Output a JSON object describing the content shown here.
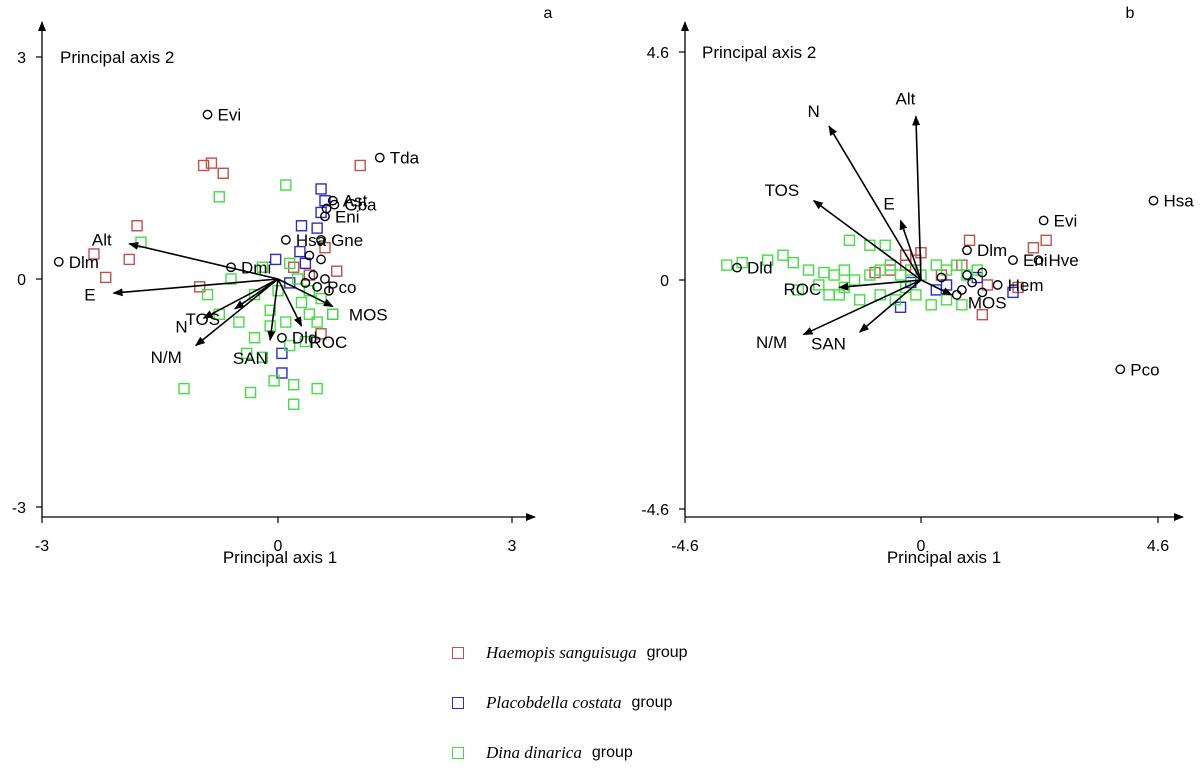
{
  "colors": {
    "haemopis": "#c0504d",
    "placobdella": "#2b2bcc",
    "dina": "#44dd44",
    "species": "#000000",
    "arrow": "#000000"
  },
  "legend": [
    {
      "name": "Haemopis sanguisuga",
      "suffix": "group",
      "color_key": "haemopis"
    },
    {
      "name": "Placobdella costata",
      "suffix": "group",
      "color_key": "placobdella"
    },
    {
      "name": "Dina dinarica",
      "suffix": "group",
      "color_key": "dina"
    }
  ],
  "chart_data": [
    {
      "type": "scatter",
      "panel_label": "a",
      "xlabel": "Principal axis  1",
      "ylabel": "Principal axis  2",
      "xlim": [
        -3,
        3
      ],
      "ylim": [
        -3,
        3
      ],
      "x_ticks": [
        "-3",
        "0",
        "3"
      ],
      "y_ticks": [
        "3",
        "0",
        "-3"
      ],
      "vectors": [
        {
          "label": "Alt",
          "x": -1.9,
          "y": 0.45
        },
        {
          "label": "E",
          "x": -2.1,
          "y": -0.18
        },
        {
          "label": "N",
          "x": -0.95,
          "y": -0.5
        },
        {
          "label": "N/M",
          "x": -1.05,
          "y": -0.85
        },
        {
          "label": "TOS",
          "x": -0.55,
          "y": -0.38
        },
        {
          "label": "SAN",
          "x": -0.1,
          "y": -0.78
        },
        {
          "label": "ROC",
          "x": 0.3,
          "y": -0.6
        },
        {
          "label": "MOS",
          "x": 0.7,
          "y": -0.35
        }
      ],
      "species": [
        {
          "label": "Evi",
          "x": -0.9,
          "y": 2.1
        },
        {
          "label": "Tda",
          "x": 1.3,
          "y": 1.55
        },
        {
          "label": "Ast",
          "x": 0.7,
          "y": 1.0
        },
        {
          "label": "Gba",
          "x": 0.72,
          "y": 0.95
        },
        {
          "label": "Eni",
          "x": 0.6,
          "y": 0.8
        },
        {
          "label": "Hsa",
          "x": 0.1,
          "y": 0.5
        },
        {
          "label": "Gne",
          "x": 0.55,
          "y": 0.5
        },
        {
          "label": "Dmi",
          "x": -0.6,
          "y": 0.15
        },
        {
          "label": "Dlm",
          "x": -2.8,
          "y": 0.22
        },
        {
          "label": "Pco",
          "x": 0.5,
          "y": -0.1
        },
        {
          "label": "Dld",
          "x": 0.05,
          "y": -0.75
        },
        {
          "label": "",
          "x": 0.4,
          "y": 0.3
        },
        {
          "label": "",
          "x": 0.55,
          "y": 0.25
        },
        {
          "label": "",
          "x": 0.45,
          "y": 0.05
        },
        {
          "label": "",
          "x": 0.6,
          "y": 0.0
        },
        {
          "label": "",
          "x": 0.35,
          "y": -0.05
        },
        {
          "label": "",
          "x": 0.65,
          "y": -0.15
        },
        {
          "label": "",
          "x": 0.62,
          "y": 0.9
        }
      ],
      "groups": [
        {
          "name": "Haemopis sanguisuga",
          "color_key": "haemopis",
          "points": [
            [
              -0.95,
              1.45
            ],
            [
              -0.85,
              1.48
            ],
            [
              -0.7,
              1.35
            ],
            [
              1.05,
              1.45
            ],
            [
              -1.8,
              0.68
            ],
            [
              -2.35,
              0.32
            ],
            [
              -1.9,
              0.25
            ],
            [
              -2.2,
              0.02
            ],
            [
              -1.0,
              -0.1
            ],
            [
              0.6,
              0.4
            ],
            [
              0.75,
              0.1
            ],
            [
              0.55,
              -0.7
            ],
            [
              0.4,
              0.05
            ],
            [
              0.2,
              0.15
            ]
          ]
        },
        {
          "name": "Placobdella costata",
          "color_key": "placobdella",
          "points": [
            [
              0.55,
              1.15
            ],
            [
              0.6,
              1.0
            ],
            [
              0.3,
              0.68
            ],
            [
              0.5,
              0.65
            ],
            [
              0.55,
              0.85
            ],
            [
              0.28,
              0.35
            ],
            [
              0.35,
              0.2
            ],
            [
              -0.03,
              0.25
            ],
            [
              0.15,
              -0.05
            ],
            [
              0.05,
              -0.95
            ],
            [
              0.05,
              -1.2
            ],
            [
              0.7,
              -0.45
            ]
          ]
        },
        {
          "name": "Dina dinarica",
          "color_key": "dina",
          "points": [
            [
              0.1,
              1.2
            ],
            [
              -0.75,
              1.05
            ],
            [
              -1.75,
              0.47
            ],
            [
              -0.9,
              -0.2
            ],
            [
              -0.75,
              -0.45
            ],
            [
              -0.5,
              -0.55
            ],
            [
              -0.3,
              -0.2
            ],
            [
              -0.2,
              0.15
            ],
            [
              0.15,
              0.2
            ],
            [
              0.25,
              0.0
            ],
            [
              0.3,
              -0.3
            ],
            [
              0.4,
              -0.45
            ],
            [
              0.5,
              -0.55
            ],
            [
              0.55,
              -0.25
            ],
            [
              0.7,
              -0.45
            ],
            [
              0.1,
              -0.55
            ],
            [
              -0.1,
              -0.6
            ],
            [
              -0.3,
              -0.75
            ],
            [
              -0.4,
              -0.95
            ],
            [
              -0.2,
              -1.0
            ],
            [
              0.15,
              -0.85
            ],
            [
              0.35,
              -0.8
            ],
            [
              -1.2,
              -1.4
            ],
            [
              -0.35,
              -1.45
            ],
            [
              -0.05,
              -1.3
            ],
            [
              0.2,
              -1.35
            ],
            [
              0.5,
              -1.4
            ],
            [
              0.2,
              -1.6
            ],
            [
              0.0,
              -0.15
            ],
            [
              -0.6,
              0.0
            ],
            [
              0.4,
              -0.15
            ],
            [
              -0.1,
              -0.4
            ]
          ]
        }
      ]
    },
    {
      "type": "scatter",
      "panel_label": "b",
      "xlabel": "Principal axis  1",
      "ylabel": "Principal axis  2",
      "xlim": [
        -4.6,
        4.6
      ],
      "ylim": [
        -4.6,
        4.6
      ],
      "x_ticks": [
        "-4.6",
        "0",
        "4.6"
      ],
      "y_ticks": [
        "4.6",
        "0",
        "-4.6"
      ],
      "vectors": [
        {
          "label": "N",
          "x": -1.8,
          "y": 3.1
        },
        {
          "label": "Alt",
          "x": -0.1,
          "y": 3.3
        },
        {
          "label": "TOS",
          "x": -2.1,
          "y": 1.6
        },
        {
          "label": "E",
          "x": -0.4,
          "y": 1.2
        },
        {
          "label": "ROC",
          "x": -1.6,
          "y": -0.15
        },
        {
          "label": "N/M",
          "x": -2.3,
          "y": -1.1
        },
        {
          "label": "SAN",
          "x": -1.2,
          "y": -1.05
        },
        {
          "label": "MOS",
          "x": 0.6,
          "y": -0.3
        }
      ],
      "species": [
        {
          "label": "Hsa",
          "x": 4.55,
          "y": 1.6
        },
        {
          "label": "Evi",
          "x": 2.4,
          "y": 1.2
        },
        {
          "label": "Dlm",
          "x": 0.9,
          "y": 0.6
        },
        {
          "label": "Eni",
          "x": 1.8,
          "y": 0.4
        },
        {
          "label": "Hve",
          "x": 2.3,
          "y": 0.4
        },
        {
          "label": "Hem",
          "x": 1.5,
          "y": -0.1
        },
        {
          "label": "Dld",
          "x": -3.6,
          "y": 0.25
        },
        {
          "label": "Pco",
          "x": 3.9,
          "y": -1.8
        },
        {
          "label": "",
          "x": 1.2,
          "y": 0.15
        },
        {
          "label": "",
          "x": 0.9,
          "y": 0.1
        },
        {
          "label": "",
          "x": 1.0,
          "y": -0.05
        },
        {
          "label": "",
          "x": 1.2,
          "y": -0.25
        },
        {
          "label": "",
          "x": 0.7,
          "y": -0.3
        },
        {
          "label": "",
          "x": 0.4,
          "y": 0.05
        },
        {
          "label": "",
          "x": 0.8,
          "y": -0.2
        }
      ],
      "groups": [
        {
          "name": "Haemopis sanguisuga",
          "color_key": "haemopis",
          "points": [
            [
              2.45,
              0.8
            ],
            [
              2.2,
              0.65
            ],
            [
              0.95,
              0.8
            ],
            [
              0.0,
              0.55
            ],
            [
              -0.3,
              0.5
            ],
            [
              0.8,
              0.3
            ],
            [
              1.3,
              -0.1
            ],
            [
              1.9,
              -0.15
            ],
            [
              1.2,
              -0.7
            ],
            [
              -0.9,
              0.15
            ],
            [
              -0.6,
              0.2
            ],
            [
              -0.3,
              0.3
            ],
            [
              0.4,
              0.1
            ],
            [
              -0.1,
              0.4
            ]
          ]
        },
        {
          "name": "Placobdella costata",
          "color_key": "placobdella",
          "points": [
            [
              1.8,
              -0.25
            ],
            [
              0.5,
              -0.1
            ],
            [
              -0.4,
              -0.55
            ],
            [
              -0.2,
              -0.05
            ],
            [
              1.1,
              0.05
            ],
            [
              0.3,
              -0.2
            ]
          ]
        },
        {
          "name": "Dina dinarica",
          "color_key": "dina",
          "points": [
            [
              -3.8,
              0.3
            ],
            [
              -3.5,
              0.35
            ],
            [
              -3.0,
              0.4
            ],
            [
              -2.7,
              0.5
            ],
            [
              -2.5,
              0.35
            ],
            [
              -2.2,
              0.2
            ],
            [
              -1.9,
              0.15
            ],
            [
              -1.7,
              0.1
            ],
            [
              -1.5,
              0.2
            ],
            [
              -1.3,
              0.0
            ],
            [
              -1.0,
              0.1
            ],
            [
              -0.8,
              0.2
            ],
            [
              -0.6,
              0.3
            ],
            [
              -0.4,
              0.1
            ],
            [
              -0.2,
              0.2
            ],
            [
              0.0,
              0.1
            ],
            [
              0.3,
              0.3
            ],
            [
              0.5,
              0.2
            ],
            [
              0.7,
              0.3
            ],
            [
              0.9,
              0.1
            ],
            [
              1.1,
              0.2
            ],
            [
              -2.4,
              -0.2
            ],
            [
              -2.0,
              -0.1
            ],
            [
              -1.6,
              -0.3
            ],
            [
              -1.2,
              -0.4
            ],
            [
              -0.8,
              -0.3
            ],
            [
              -0.5,
              -0.4
            ],
            [
              -0.1,
              -0.3
            ],
            [
              0.2,
              -0.5
            ],
            [
              0.5,
              -0.4
            ],
            [
              0.8,
              -0.5
            ],
            [
              -1.4,
              0.8
            ],
            [
              -1.0,
              0.7
            ],
            [
              -0.7,
              0.7
            ],
            [
              -1.5,
              -0.15
            ],
            [
              -1.8,
              -0.3
            ],
            [
              -0.3,
              -0.15
            ]
          ]
        }
      ]
    }
  ]
}
